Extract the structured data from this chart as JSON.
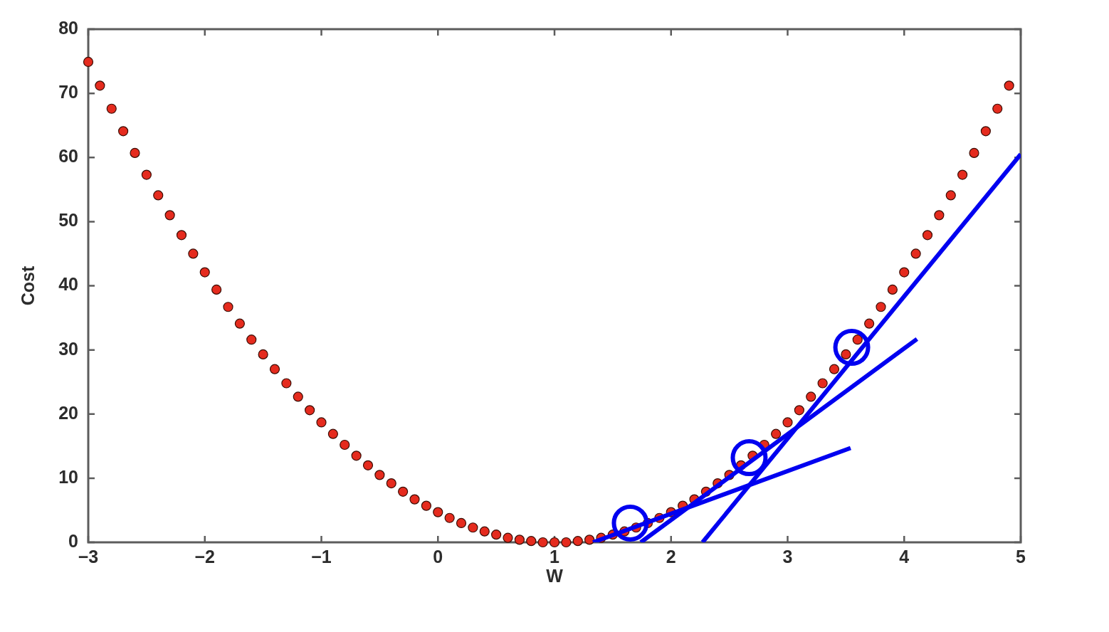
{
  "chart_data": {
    "type": "scatter",
    "xlabel": "W",
    "ylabel": "Cost",
    "marker": "circle",
    "line_style": "solid",
    "xlim": [
      -3,
      5
    ],
    "ylim": [
      0,
      80
    ],
    "xticks": [
      {
        "value": -3,
        "label": "−3"
      },
      {
        "value": -2,
        "label": "−2"
      },
      {
        "value": -1,
        "label": "−1"
      },
      0,
      1,
      2,
      3,
      4,
      5
    ],
    "yticks": [
      0,
      10,
      20,
      30,
      40,
      50,
      60,
      70,
      80
    ],
    "series": [
      {
        "color": "#e52b1e",
        "x": [
          -3.0,
          -2.9,
          -2.8,
          -2.7,
          -2.6,
          -2.5,
          -2.4,
          -2.3,
          -2.2,
          -2.1,
          -2.0,
          -1.9,
          -1.8,
          -1.7,
          -1.6,
          -1.5,
          -1.4,
          -1.3,
          -1.2,
          -1.1,
          -1.0,
          -0.9,
          -0.8,
          -0.7,
          -0.6,
          -0.5,
          -0.4,
          -0.3,
          -0.2,
          -0.1,
          0.0,
          0.1,
          0.2,
          0.3,
          0.4,
          0.5,
          0.6,
          0.7,
          0.8,
          0.9,
          1.0,
          1.1,
          1.2,
          1.3,
          1.4,
          1.5,
          1.6,
          1.7,
          1.8,
          1.9,
          2.0,
          2.1,
          2.2,
          2.3,
          2.4,
          2.5,
          2.6,
          2.7,
          2.8,
          2.9,
          3.0,
          3.1,
          3.2,
          3.3,
          3.4,
          3.5,
          3.6,
          3.7,
          3.8,
          3.9,
          4.0,
          4.1,
          4.2,
          4.3,
          4.4,
          4.5,
          4.6,
          4.7,
          4.8,
          4.9
        ],
        "values": [
          74.9,
          71.2,
          67.6,
          64.1,
          60.7,
          57.3,
          54.1,
          51.0,
          47.9,
          45.0,
          42.1,
          39.4,
          36.7,
          34.1,
          31.6,
          29.3,
          27.0,
          24.8,
          22.7,
          20.6,
          18.7,
          16.9,
          15.2,
          13.5,
          12.0,
          10.5,
          9.2,
          7.9,
          6.7,
          5.7,
          4.7,
          3.8,
          3.0,
          2.3,
          1.7,
          1.2,
          0.7,
          0.4,
          0.2,
          0.0,
          0.0,
          0.0,
          0.2,
          0.4,
          0.7,
          1.2,
          1.7,
          2.3,
          3.0,
          3.8,
          4.7,
          5.7,
          6.7,
          7.9,
          9.2,
          10.5,
          12.0,
          13.5,
          15.2,
          16.9,
          18.7,
          20.6,
          22.7,
          24.8,
          27.0,
          29.3,
          31.6,
          34.1,
          36.7,
          39.4,
          42.1,
          45.0,
          47.9,
          51.0,
          54.1,
          57.3,
          60.7,
          64.1,
          67.6,
          71.2
        ]
      },
      {
        "type": "line",
        "color": "#0000f0",
        "marker": "none",
        "x": [
          1.33,
          3.54
        ],
        "values": [
          0,
          14.7
        ]
      },
      {
        "type": "line",
        "color": "#0000f0",
        "marker": "none",
        "x": [
          1.74,
          4.11
        ],
        "values": [
          0,
          31.7
        ]
      },
      {
        "type": "line",
        "color": "#0000f0",
        "marker": "none",
        "x": [
          2.27,
          5
        ],
        "values": [
          0,
          60.5
        ]
      },
      {
        "color": "#0000f0",
        "x": [
          1.65,
          2.67,
          3.55
        ],
        "values": [
          3.0,
          13.2,
          30.4
        ]
      }
    ]
  }
}
